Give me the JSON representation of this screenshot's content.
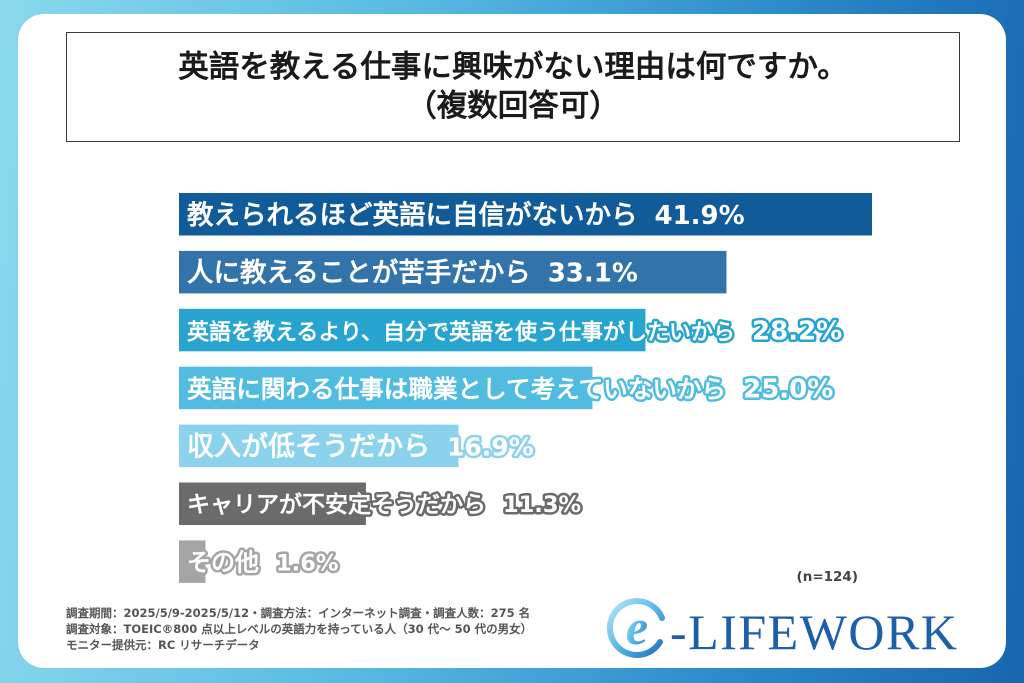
{
  "chart_data": {
    "type": "bar",
    "orientation": "horizontal",
    "title": [
      "英語を教える仕事に興味がない理由は何ですか。",
      "（複数回答可）"
    ],
    "categories": [
      "教えられるほど英語に自信がないから",
      "人に教えることが苦手だから",
      "英語を教えるより、自分で英語を使う仕事がしたいから",
      "英語に関わる仕事は職業として考えていないから",
      "収入が低そうだから",
      "キャリアが不安定そうだから",
      "その他"
    ],
    "values": [
      41.9,
      33.1,
      28.2,
      25.0,
      16.9,
      11.3,
      1.6
    ],
    "unit": "%",
    "colors": [
      "#115c98",
      "#3273aa",
      "#27a4d0",
      "#52bce0",
      "#8bd3ed",
      "#6b6b6b",
      "#a5a5a5"
    ],
    "sample_size": "(n=124)",
    "xlabel": "",
    "ylabel": "",
    "grid": false,
    "legend": "none"
  },
  "footer": {
    "notes": [
      "調査期間：2025/5/9-2025/5/12・調査方法：インターネット調査・調査人数：275 名",
      "調査対象：TOEIC®800 点以上レベルの英語力を持っている人（30 代～ 50 代の男女）",
      "モニター提供元：RC リサーチデータ"
    ]
  },
  "logo": {
    "emblem_letter": "e",
    "wordmark": "-LIFEWORK",
    "color": "#1d5fa8"
  }
}
